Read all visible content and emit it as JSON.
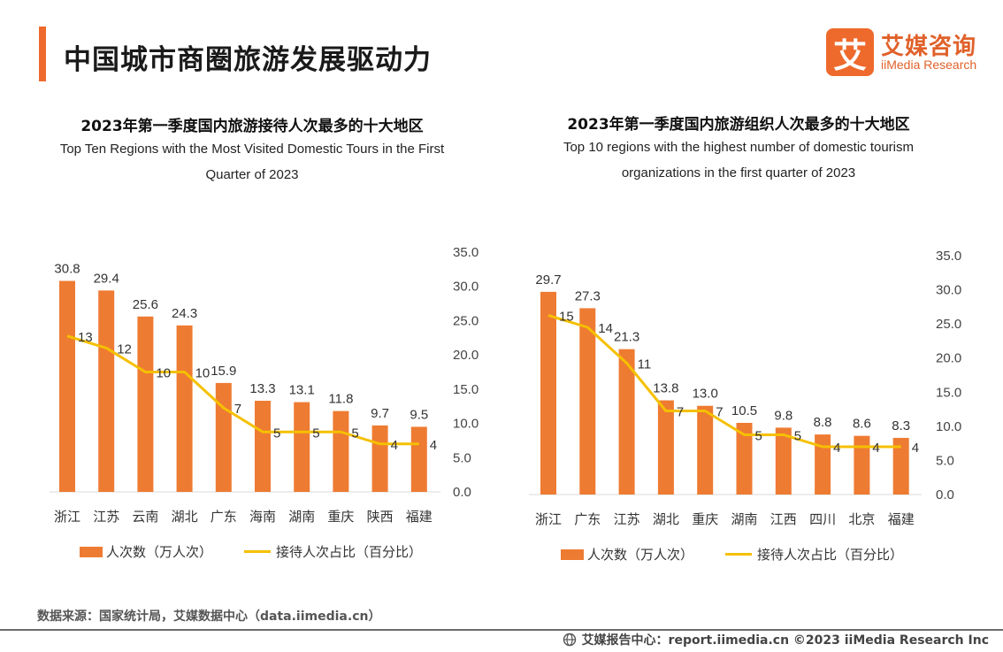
{
  "page": {
    "title": "中国城市商圈旅游发展驱动力",
    "source": "数据来源：国家统计局，艾媒数据中心（data.iimedia.cn）",
    "footer": "艾媒报告中心：report.iimedia.cn  ©2023  iiMedia Research  Inc"
  },
  "logo": {
    "glyph": "艾",
    "cn": "艾媒咨询",
    "en": "iiMedia Research"
  },
  "colors": {
    "accent": "#ee6a2c",
    "bar": "#ee7b32",
    "line": "#f5c000"
  },
  "chart_data": [
    {
      "type": "bar+line",
      "title": "2023年第一季度国内旅游接待人次最多的十大地区",
      "subtitle": "Top Ten Regions with the Most Visited Domestic Tours in the First Quarter of 2023",
      "categories": [
        "浙江",
        "江苏",
        "云南",
        "湖北",
        "广东",
        "海南",
        "湖南",
        "重庆",
        "陕西",
        "福建"
      ],
      "series": [
        {
          "name": "人次数（万人次）",
          "kind": "bar",
          "values": [
            30.8,
            29.4,
            25.6,
            24.3,
            15.9,
            13.3,
            13.1,
            11.8,
            9.7,
            9.5
          ],
          "labels": [
            "30.8",
            "29.4",
            "25.6",
            "24.3",
            "15.9",
            "13.3",
            "13.1",
            "11.8",
            "9.7",
            "9.5"
          ]
        },
        {
          "name": "接待人次占比（百分比）",
          "kind": "line",
          "values": [
            13,
            12,
            10,
            10,
            7,
            5,
            5,
            5,
            4,
            4
          ]
        }
      ],
      "y_right_ticks": [
        "0.0",
        "5.0",
        "10.0",
        "15.0",
        "20.0",
        "25.0",
        "30.0",
        "35.0"
      ],
      "ylim": [
        0,
        35
      ]
    },
    {
      "type": "bar+line",
      "title": "2023年第一季度国内旅游组织人次最多的十大地区",
      "subtitle": "Top 10 regions with the highest number of domestic tourism organizations in the first quarter of 2023",
      "categories": [
        "浙江",
        "广东",
        "江苏",
        "湖北",
        "重庆",
        "湖南",
        "江西",
        "四川",
        "北京",
        "福建"
      ],
      "series": [
        {
          "name": "人次数（万人次）",
          "kind": "bar",
          "values": [
            29.7,
            27.3,
            21.3,
            13.8,
            13.0,
            10.5,
            9.8,
            8.8,
            8.6,
            8.3
          ],
          "labels": [
            "29.7",
            "27.3",
            "21.3",
            "13.8",
            "13.0",
            "10.5",
            "9.8",
            "8.8",
            "8.6",
            "8.3"
          ]
        },
        {
          "name": "接待人次占比（百分比）",
          "kind": "line",
          "values": [
            15,
            14,
            11,
            7,
            7,
            5,
            5,
            4,
            4,
            4
          ]
        }
      ],
      "y_right_ticks": [
        "0.0",
        "5.0",
        "10.0",
        "15.0",
        "20.0",
        "25.0",
        "30.0",
        "35.0"
      ],
      "ylim": [
        0,
        35
      ]
    }
  ]
}
